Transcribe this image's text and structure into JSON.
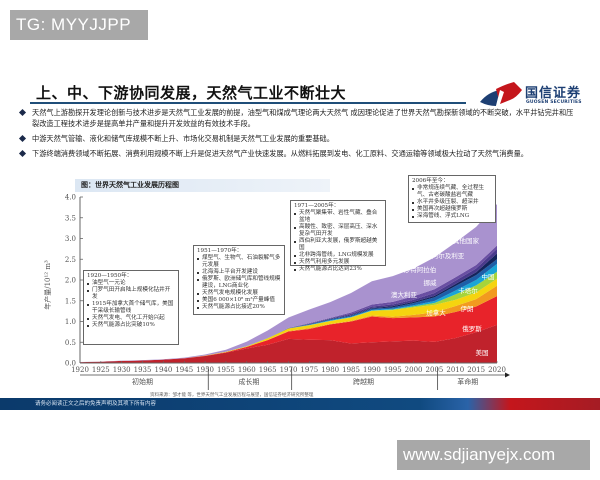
{
  "watermarks": {
    "top": "TG: MYYJJPP",
    "bottom": "www.sdjianyejx.com"
  },
  "slide": {
    "title": "上、中、下游协同发展，天然气工业不断壮大",
    "logo": {
      "name_cn": "国信证券",
      "name_en": "GUOSEN SECURITIES",
      "colors": {
        "red": "#c4161c",
        "blue": "#1d3f73"
      }
    },
    "bullets": [
      {
        "text": "天然气上游勘探开发理论创新与技术进步是天然气工业发展的前提，油型气和煤成气理论两大天然气 成因理论促进了世界天然气勘探新领域的不断突破，水平井钻完井和压裂改造工程技术进步是提高单井产量和提升开发效益的有效技术手段。"
      },
      {
        "text": "中游天然气管输、液化和储气库规模不断上升、市场化交易机制是天然气工业发展的重要基础。"
      },
      {
        "text": "下游终端消费领域不断拓展、消费利用规模不断上升是促进天然气产业快速发展。从燃料拓展到发电、化工原料、交通运输等领域极大拉动了天然气消费量。"
      }
    ],
    "footer_disclaimer": "请务必阅读正文之后的免责声明及其项下所有内容",
    "source_note": "资料来源：邹才能 等，世界天然气工业发展历程与展望，国信证券经济研究所整理"
  },
  "chart_data": {
    "type": "area",
    "title": "图：世界天然气工业发展历程图",
    "xlabel": "",
    "ylabel": "年产量/10¹² m³",
    "x": [
      1920,
      1925,
      1930,
      1935,
      1940,
      1945,
      1950,
      1955,
      1960,
      1965,
      1970,
      1975,
      1980,
      1985,
      1990,
      1995,
      2000,
      2005,
      2010,
      2015,
      2020
    ],
    "x_ticks": [
      "1920",
      "1925",
      "1930",
      "1935",
      "1940",
      "1945",
      "1950",
      "1955",
      "1960",
      "1965",
      "1970",
      "1975",
      "1980",
      "1985",
      "1990",
      "1995",
      "2000",
      "2005",
      "2010",
      "2015",
      "2020"
    ],
    "y_ticks": [
      "0.0",
      "0.5",
      "1.0",
      "1.5",
      "2.0",
      "2.5",
      "3.0",
      "3.5",
      "4.0"
    ],
    "ylim": [
      0,
      4.0
    ],
    "stacked": true,
    "series": [
      {
        "name": "美国",
        "color": "#c0222c",
        "values": [
          0.02,
          0.03,
          0.05,
          0.06,
          0.08,
          0.11,
          0.17,
          0.25,
          0.35,
          0.44,
          0.58,
          0.56,
          0.55,
          0.47,
          0.5,
          0.52,
          0.54,
          0.51,
          0.6,
          0.74,
          0.92
        ]
      },
      {
        "name": "俄罗斯",
        "color": "#e8232a",
        "values": [
          0,
          0,
          0,
          0,
          0,
          0.003,
          0.005,
          0.01,
          0.04,
          0.11,
          0.18,
          0.26,
          0.38,
          0.53,
          0.62,
          0.56,
          0.56,
          0.61,
          0.63,
          0.62,
          0.69
        ]
      },
      {
        "name": "伊朗",
        "color": "#f29a1f",
        "values": [
          0,
          0,
          0,
          0,
          0,
          0,
          0,
          0,
          0,
          0.005,
          0.01,
          0.02,
          0.01,
          0.015,
          0.025,
          0.035,
          0.06,
          0.1,
          0.14,
          0.18,
          0.25
        ]
      },
      {
        "name": "加拿大",
        "color": "#f5d40f",
        "values": [
          0,
          0,
          0,
          0,
          0,
          0.002,
          0.005,
          0.01,
          0.015,
          0.04,
          0.06,
          0.07,
          0.07,
          0.08,
          0.11,
          0.16,
          0.18,
          0.18,
          0.15,
          0.16,
          0.17
        ]
      },
      {
        "name": "卡塔尔",
        "color": "#a6d43a",
        "values": [
          0,
          0,
          0,
          0,
          0,
          0,
          0,
          0,
          0,
          0,
          0.001,
          0.002,
          0.005,
          0.006,
          0.008,
          0.015,
          0.025,
          0.045,
          0.13,
          0.17,
          0.17
        ]
      },
      {
        "name": "中国",
        "color": "#19a5d6",
        "values": [
          0,
          0,
          0,
          0,
          0,
          0,
          0,
          0,
          0.001,
          0.003,
          0.004,
          0.008,
          0.014,
          0.013,
          0.015,
          0.018,
          0.027,
          0.05,
          0.095,
          0.13,
          0.19
        ]
      },
      {
        "name": "挪威",
        "color": "#1d5fa8",
        "values": [
          0,
          0,
          0,
          0,
          0,
          0,
          0,
          0,
          0,
          0,
          0,
          0.015,
          0.025,
          0.028,
          0.028,
          0.031,
          0.05,
          0.085,
          0.107,
          0.117,
          0.11
        ]
      },
      {
        "name": "澳大利亚",
        "color": "#14245c",
        "values": [
          0,
          0,
          0,
          0,
          0,
          0,
          0,
          0,
          0,
          0,
          0.002,
          0.005,
          0.01,
          0.013,
          0.02,
          0.03,
          0.032,
          0.038,
          0.05,
          0.07,
          0.14
        ]
      },
      {
        "name": "沙特阿拉伯",
        "color": "#4a3a8c",
        "values": [
          0,
          0,
          0,
          0,
          0,
          0,
          0,
          0,
          0,
          0.002,
          0.005,
          0.01,
          0.01,
          0.03,
          0.035,
          0.045,
          0.05,
          0.07,
          0.08,
          0.09,
          0.11
        ]
      },
      {
        "name": "阿尔及利亚",
        "color": "#6a4fa3",
        "values": [
          0,
          0,
          0,
          0,
          0,
          0,
          0,
          0,
          0,
          0.002,
          0.003,
          0.01,
          0.014,
          0.033,
          0.049,
          0.058,
          0.084,
          0.088,
          0.08,
          0.083,
          0.08
        ]
      },
      {
        "name": "其他国家",
        "color": "#a992cf",
        "values": [
          0.003,
          0.004,
          0.006,
          0.008,
          0.01,
          0.015,
          0.025,
          0.05,
          0.11,
          0.18,
          0.25,
          0.33,
          0.38,
          0.47,
          0.56,
          0.62,
          0.67,
          0.77,
          0.84,
          0.92,
          1.0
        ]
      }
    ],
    "periods": [
      {
        "label": "初始期",
        "from": 1920,
        "to": 1950
      },
      {
        "label": "成长期",
        "from": 1951,
        "to": 1970
      },
      {
        "label": "跨越期",
        "from": 1971,
        "to": 2005
      },
      {
        "label": "革命期",
        "from": 2006,
        "to": 2020
      }
    ],
    "annotations": [
      {
        "heading": "1920—1950年：",
        "items": [
          "油型气一元论",
          "门罗气田开启陆上规模化钻井开发",
          "1915年加拿大首个储气库，美国干采级长输管线",
          "天然气发电、气化工开始兴起",
          "天然气能源占比突破10%"
        ]
      },
      {
        "heading": "1951—1970年：",
        "items": [
          "煤型气、生物气、石油裂解气多元发展",
          "北海海上平台开发建设",
          "俄罗斯、欧洲储气库和管线规模建设，LNG商业化",
          "天然气发电规模化发展",
          "美国6 000×10⁸ m³产量峰值",
          "天然气能源占比接近20%"
        ]
      },
      {
        "heading": "1971—2005年：",
        "items": [
          "天然气聚集带、岩性气藏、叠合盆地",
          "高酸性、致密、深层高压、深水复杂气田开发",
          "西伯利亚大发展，俄罗斯超越美国",
          "北非跨海管线，LNG规模发展",
          "天然气利用多元发展",
          "天然气能源占比达到23%"
        ]
      },
      {
        "heading": "2006年至今：",
        "items": [
          "非常规连续气藏、全过程生气、古老碳酸盐岩气藏",
          "水平井多级压裂、超深井",
          "美国再次超越俄罗斯",
          "深海管线、浮式LNG"
        ]
      }
    ],
    "area_labels": [
      "美国",
      "俄罗斯",
      "伊朗",
      "加拿大",
      "卡塔尔",
      "中国",
      "挪威",
      "澳大利亚",
      "沙特阿拉伯",
      "阿尔及利亚",
      "其他国家"
    ],
    "grid": false,
    "legend_position": "inline labels"
  }
}
